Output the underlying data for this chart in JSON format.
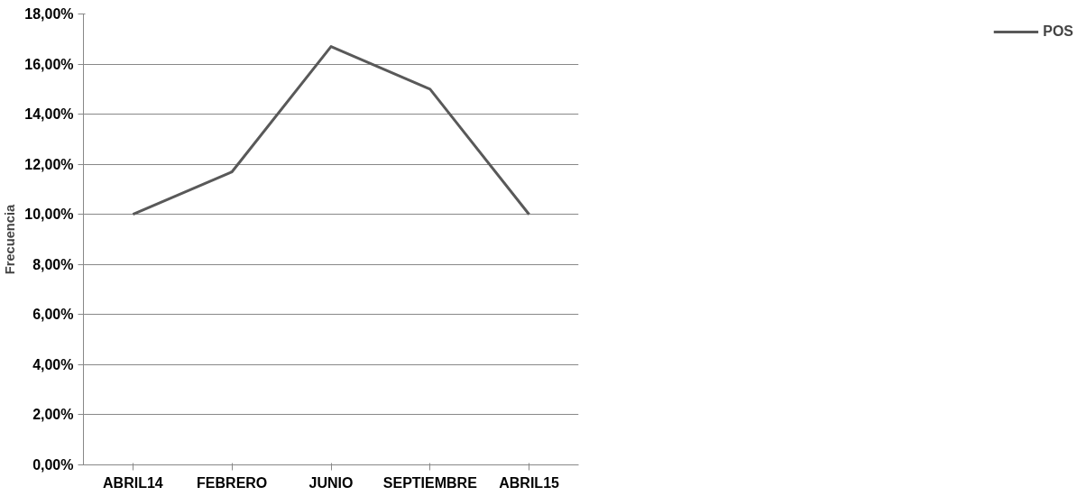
{
  "chart_data": {
    "type": "line",
    "ylabel": "Frecuencia",
    "categories": [
      "ABRIL14",
      "FEBRERO",
      "JUNIO",
      "SEPTIEMBRE",
      "ABRIL15"
    ],
    "series": [
      {
        "name": "POS",
        "color": "#595959",
        "values": [
          10.0,
          11.7,
          16.7,
          15.0,
          10.0
        ]
      }
    ],
    "ylim": [
      0,
      18
    ],
    "yticks": [
      {
        "value": 0,
        "label": "0,00%"
      },
      {
        "value": 2,
        "label": "2,00%"
      },
      {
        "value": 4,
        "label": "4,00%"
      },
      {
        "value": 6,
        "label": "6,00%"
      },
      {
        "value": 8,
        "label": "8,00%"
      },
      {
        "value": 10,
        "label": "10,00%"
      },
      {
        "value": 12,
        "label": "12,00%"
      },
      {
        "value": 14,
        "label": "14,00%"
      },
      {
        "value": 16,
        "label": "16,00%"
      },
      {
        "value": 18,
        "label": "18,00%"
      }
    ],
    "grid": "y",
    "legend": "right",
    "marker": "none",
    "line_style": "solid"
  }
}
